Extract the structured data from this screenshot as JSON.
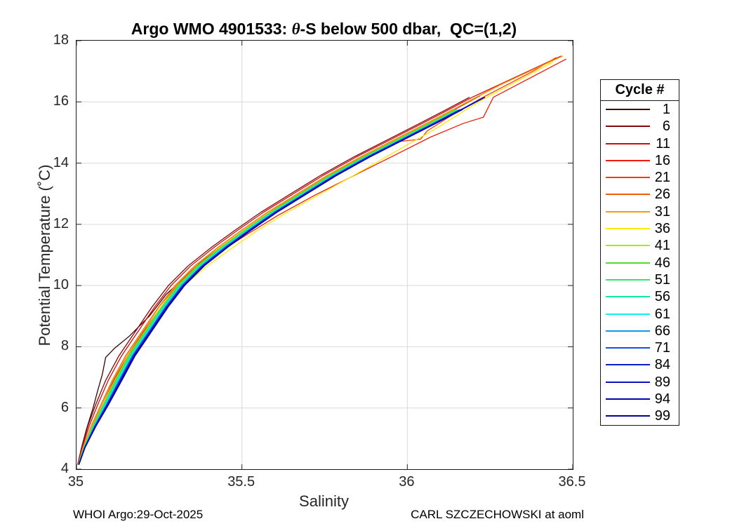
{
  "figure": {
    "footer_left": "WHOI Argo:29-Oct-2025",
    "footer_right": "CARL SZCZECHOWSKI at aoml"
  },
  "chart_data": {
    "type": "line",
    "title_prefix": "Argo WMO 4901533: ",
    "title_theta": "θ",
    "title_suffix": "-S below 500 dbar,  QC=(1,2)",
    "xlabel": "Salinity",
    "ylabel": "Potential Temperature (˚C)",
    "xlim": [
      35,
      36.5
    ],
    "ylim": [
      4,
      18
    ],
    "xticks": [
      {
        "v": 35,
        "label": "35"
      },
      {
        "v": 35.5,
        "label": "35.5"
      },
      {
        "v": 36,
        "label": "36"
      },
      {
        "v": 36.5,
        "label": "36.5"
      }
    ],
    "yticks": [
      {
        "v": 4,
        "label": "4"
      },
      {
        "v": 6,
        "label": "6"
      },
      {
        "v": 8,
        "label": "8"
      },
      {
        "v": 10,
        "label": "10"
      },
      {
        "v": 12,
        "label": "12"
      },
      {
        "v": 14,
        "label": "14"
      },
      {
        "v": 16,
        "label": "16"
      },
      {
        "v": 18,
        "label": "18"
      }
    ],
    "grid": true,
    "grid_color": "#d9d9d9",
    "axis_color": "#262626",
    "legend_title": "Cycle #",
    "legend_position": "right-outside",
    "base_curve": [
      [
        35.005,
        4.15
      ],
      [
        35.02,
        4.7
      ],
      [
        35.045,
        5.4
      ],
      [
        35.075,
        6.1
      ],
      [
        35.11,
        6.9
      ],
      [
        35.15,
        7.7
      ],
      [
        35.2,
        8.5
      ],
      [
        35.25,
        9.3
      ],
      [
        35.3,
        10.0
      ],
      [
        35.36,
        10.65
      ],
      [
        35.43,
        11.25
      ],
      [
        35.5,
        11.8
      ],
      [
        35.58,
        12.4
      ],
      [
        35.67,
        13.0
      ],
      [
        35.76,
        13.6
      ],
      [
        35.86,
        14.2
      ],
      [
        35.96,
        14.75
      ],
      [
        36.06,
        15.3
      ],
      [
        36.14,
        15.75
      ],
      [
        36.21,
        16.15
      ]
    ],
    "warm_extension": [
      [
        36.28,
        16.55
      ],
      [
        36.36,
        16.95
      ],
      [
        36.43,
        17.3
      ],
      [
        36.47,
        17.5
      ]
    ],
    "series": [
      {
        "label": "1",
        "color": "#3C0000",
        "points": [
          [
            35.005,
            4.2
          ],
          [
            35.015,
            4.7
          ],
          [
            35.03,
            5.3
          ],
          [
            35.05,
            6.0
          ],
          [
            35.065,
            6.6
          ],
          [
            35.078,
            7.1
          ],
          [
            35.088,
            7.65
          ],
          [
            35.115,
            7.95
          ],
          [
            35.16,
            8.35
          ],
          [
            35.22,
            9.0
          ],
          [
            35.27,
            9.7
          ],
          [
            35.32,
            10.2
          ],
          [
            35.38,
            10.8
          ],
          [
            35.45,
            11.35
          ],
          [
            35.52,
            11.9
          ],
          [
            35.6,
            12.5
          ],
          [
            35.69,
            13.1
          ],
          [
            35.78,
            13.7
          ],
          [
            35.88,
            14.3
          ],
          [
            35.98,
            14.85
          ],
          [
            36.08,
            15.4
          ],
          [
            36.16,
            15.85
          ],
          [
            36.22,
            16.2
          ]
        ]
      },
      {
        "label": "6",
        "color": "#840707",
        "dx": -0.022,
        "t_end": 16.15,
        "extend": false
      },
      {
        "label": "11",
        "color": "#D40A0A",
        "dx": -0.014,
        "t_end": 16.15,
        "extend": true
      },
      {
        "label": "16",
        "color": "#EE1B07",
        "points": [
          [
            35.005,
            4.15
          ],
          [
            35.025,
            4.8
          ],
          [
            35.05,
            5.5
          ],
          [
            35.08,
            6.2
          ],
          [
            35.115,
            6.95
          ],
          [
            35.155,
            7.7
          ],
          [
            35.2,
            8.45
          ],
          [
            35.25,
            9.2
          ],
          [
            35.305,
            9.9
          ],
          [
            35.37,
            10.55
          ],
          [
            35.44,
            11.15
          ],
          [
            35.52,
            11.7
          ],
          [
            35.61,
            12.3
          ],
          [
            35.72,
            12.95
          ],
          [
            35.84,
            13.6
          ],
          [
            35.96,
            14.25
          ],
          [
            36.07,
            14.85
          ],
          [
            36.17,
            15.3
          ],
          [
            36.23,
            15.5
          ],
          [
            36.26,
            16.15
          ],
          [
            36.33,
            16.55
          ],
          [
            36.41,
            17.0
          ],
          [
            36.48,
            17.4
          ]
        ]
      },
      {
        "label": "21",
        "color": "#FA3B05",
        "points": [
          [
            35.005,
            4.15
          ],
          [
            35.02,
            4.7
          ],
          [
            35.045,
            5.4
          ],
          [
            35.075,
            6.1
          ],
          [
            35.11,
            6.9
          ],
          [
            35.15,
            7.7
          ],
          [
            35.2,
            8.5
          ],
          [
            35.25,
            9.3
          ],
          [
            35.3,
            9.95
          ],
          [
            35.36,
            10.6
          ],
          [
            35.43,
            11.2
          ],
          [
            35.5,
            11.75
          ],
          [
            35.59,
            12.35
          ],
          [
            35.68,
            12.95
          ],
          [
            35.77,
            13.55
          ],
          [
            35.87,
            14.15
          ],
          [
            35.97,
            14.7
          ],
          [
            36.04,
            14.78
          ],
          [
            36.06,
            15.05
          ],
          [
            36.14,
            15.6
          ],
          [
            36.22,
            16.1
          ],
          [
            36.3,
            16.55
          ],
          [
            36.38,
            17.0
          ],
          [
            36.45,
            17.45
          ]
        ]
      },
      {
        "label": "26",
        "color": "#F05E03",
        "dx": -0.002,
        "t_end": 16.15,
        "extend": true
      },
      {
        "label": "31",
        "color": "#FB9B02",
        "dx": 0.0,
        "t_end": 16.15,
        "extend": true
      },
      {
        "label": "36",
        "color": "#FCE903",
        "points": [
          [
            35.01,
            4.2
          ],
          [
            35.03,
            4.85
          ],
          [
            35.06,
            5.6
          ],
          [
            35.09,
            6.3
          ],
          [
            35.125,
            7.0
          ],
          [
            35.165,
            7.75
          ],
          [
            35.21,
            8.5
          ],
          [
            35.265,
            9.3
          ],
          [
            35.325,
            10.0
          ],
          [
            35.39,
            10.6
          ],
          [
            35.46,
            11.15
          ],
          [
            35.54,
            11.75
          ],
          [
            35.63,
            12.35
          ],
          [
            35.73,
            12.95
          ],
          [
            35.83,
            13.55
          ],
          [
            35.92,
            14.1
          ],
          [
            36.0,
            14.6
          ],
          [
            36.09,
            15.15
          ],
          [
            36.17,
            15.7
          ],
          [
            36.24,
            16.15
          ],
          [
            36.31,
            16.55
          ],
          [
            36.38,
            16.95
          ],
          [
            36.44,
            17.3
          ]
        ]
      },
      {
        "label": "41",
        "color": "#A6EB0A",
        "dx": 0.006,
        "t_end": 16.0,
        "extend": false
      },
      {
        "label": "46",
        "color": "#53DB2B",
        "dx": 0.008,
        "t_end": 16.1,
        "extend": false
      },
      {
        "label": "51",
        "color": "#2EE96E",
        "dx": 0.01,
        "t_end": 15.9,
        "extend": false
      },
      {
        "label": "56",
        "color": "#10E9A8",
        "dx": 0.013,
        "t_end": 15.6,
        "extend": false
      },
      {
        "label": "61",
        "color": "#0FEFF0",
        "dx": 0.016,
        "t_end": 15.75,
        "extend": false
      },
      {
        "label": "66",
        "color": "#1196EE",
        "dx": 0.018,
        "t_end": 16.0,
        "extend": false
      },
      {
        "label": "71",
        "color": "#0A51F0",
        "dx": 0.02,
        "t_end": 16.1,
        "extend": false
      },
      {
        "label": "84",
        "color": "#0A1ECC",
        "dx": 0.022,
        "t_end": 16.15,
        "extend": false
      },
      {
        "label": "89",
        "color": "#0713BB",
        "dx": 0.023,
        "t_end": 16.1,
        "extend": false
      },
      {
        "label": "94",
        "color": "#0402AA",
        "dx": 0.025,
        "t_end": 16.15,
        "extend": false
      },
      {
        "label": "99",
        "color": "#010099",
        "dx": 0.027,
        "t_end": 16.05,
        "extend": false
      }
    ]
  }
}
